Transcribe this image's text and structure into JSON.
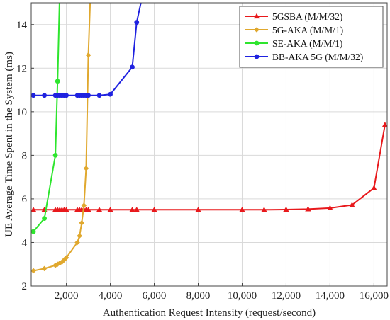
{
  "chart_data": {
    "type": "line",
    "title": "",
    "xlabel": "Authentication Request Intensity (request/second)",
    "ylabel": "UE Average Time Spent in the System (ms)",
    "xlim": [
      400,
      16600
    ],
    "ylim": [
      2,
      15
    ],
    "x_ticks": [
      2000,
      4000,
      6000,
      8000,
      10000,
      12000,
      14000,
      16000
    ],
    "x_tick_labels": [
      "2,000",
      "4,000",
      "6,000",
      "8,000",
      "10,000",
      "12,000",
      "14,000",
      "16,000"
    ],
    "y_ticks": [
      2,
      4,
      6,
      8,
      10,
      12,
      14
    ],
    "y_tick_labels": [
      "2",
      "4",
      "6",
      "8",
      "10",
      "12",
      "14"
    ],
    "grid": true,
    "legend": {
      "placement": "top-right"
    },
    "series": [
      {
        "name": "5GSBA (M/M/32)",
        "color": "#e8191c",
        "marker": "triangle",
        "x": [
          500,
          1000,
          1500,
          1600,
          1700,
          1800,
          1900,
          2000,
          2500,
          2600,
          2700,
          2800,
          2900,
          3000,
          3500,
          4000,
          5000,
          5200,
          6000,
          8000,
          10000,
          11000,
          12000,
          13000,
          14000,
          15000,
          16000,
          16500
        ],
        "y": [
          5.5,
          5.5,
          5.5,
          5.5,
          5.5,
          5.5,
          5.5,
          5.5,
          5.5,
          5.5,
          5.5,
          5.5,
          5.5,
          5.5,
          5.5,
          5.5,
          5.5,
          5.5,
          5.5,
          5.5,
          5.5,
          5.5,
          5.51,
          5.53,
          5.58,
          5.72,
          6.5,
          9.4
        ]
      },
      {
        "name": "5G-AKA (M/M/1)",
        "color": "#e0a82e",
        "marker": "diamond",
        "x": [
          500,
          1000,
          1500,
          1600,
          1700,
          1800,
          1900,
          2000,
          2500,
          2600,
          2700,
          2800,
          2900,
          3000,
          3100
        ],
        "y": [
          2.7,
          2.8,
          2.95,
          3.0,
          3.05,
          3.1,
          3.2,
          3.3,
          4.0,
          4.3,
          4.9,
          5.7,
          7.4,
          12.6,
          15.5
        ]
      },
      {
        "name": "SE-AKA (M/M/1)",
        "color": "#2ee52e",
        "marker": "circle",
        "x": [
          500,
          1000,
          1500,
          1600,
          1700
        ],
        "y": [
          4.5,
          5.1,
          8.0,
          11.4,
          15.5
        ]
      },
      {
        "name": "BB-AKA 5G (M/M/32)",
        "color": "#1f22e0",
        "marker": "circle",
        "x": [
          500,
          1000,
          1500,
          1600,
          1700,
          1800,
          1900,
          2000,
          2500,
          2600,
          2700,
          2800,
          2900,
          3000,
          3500,
          4000,
          5000,
          5200,
          5500
        ],
        "y": [
          10.75,
          10.75,
          10.75,
          10.75,
          10.75,
          10.75,
          10.75,
          10.75,
          10.75,
          10.75,
          10.75,
          10.75,
          10.75,
          10.75,
          10.75,
          10.8,
          12.05,
          14.1,
          15.5
        ]
      }
    ]
  }
}
